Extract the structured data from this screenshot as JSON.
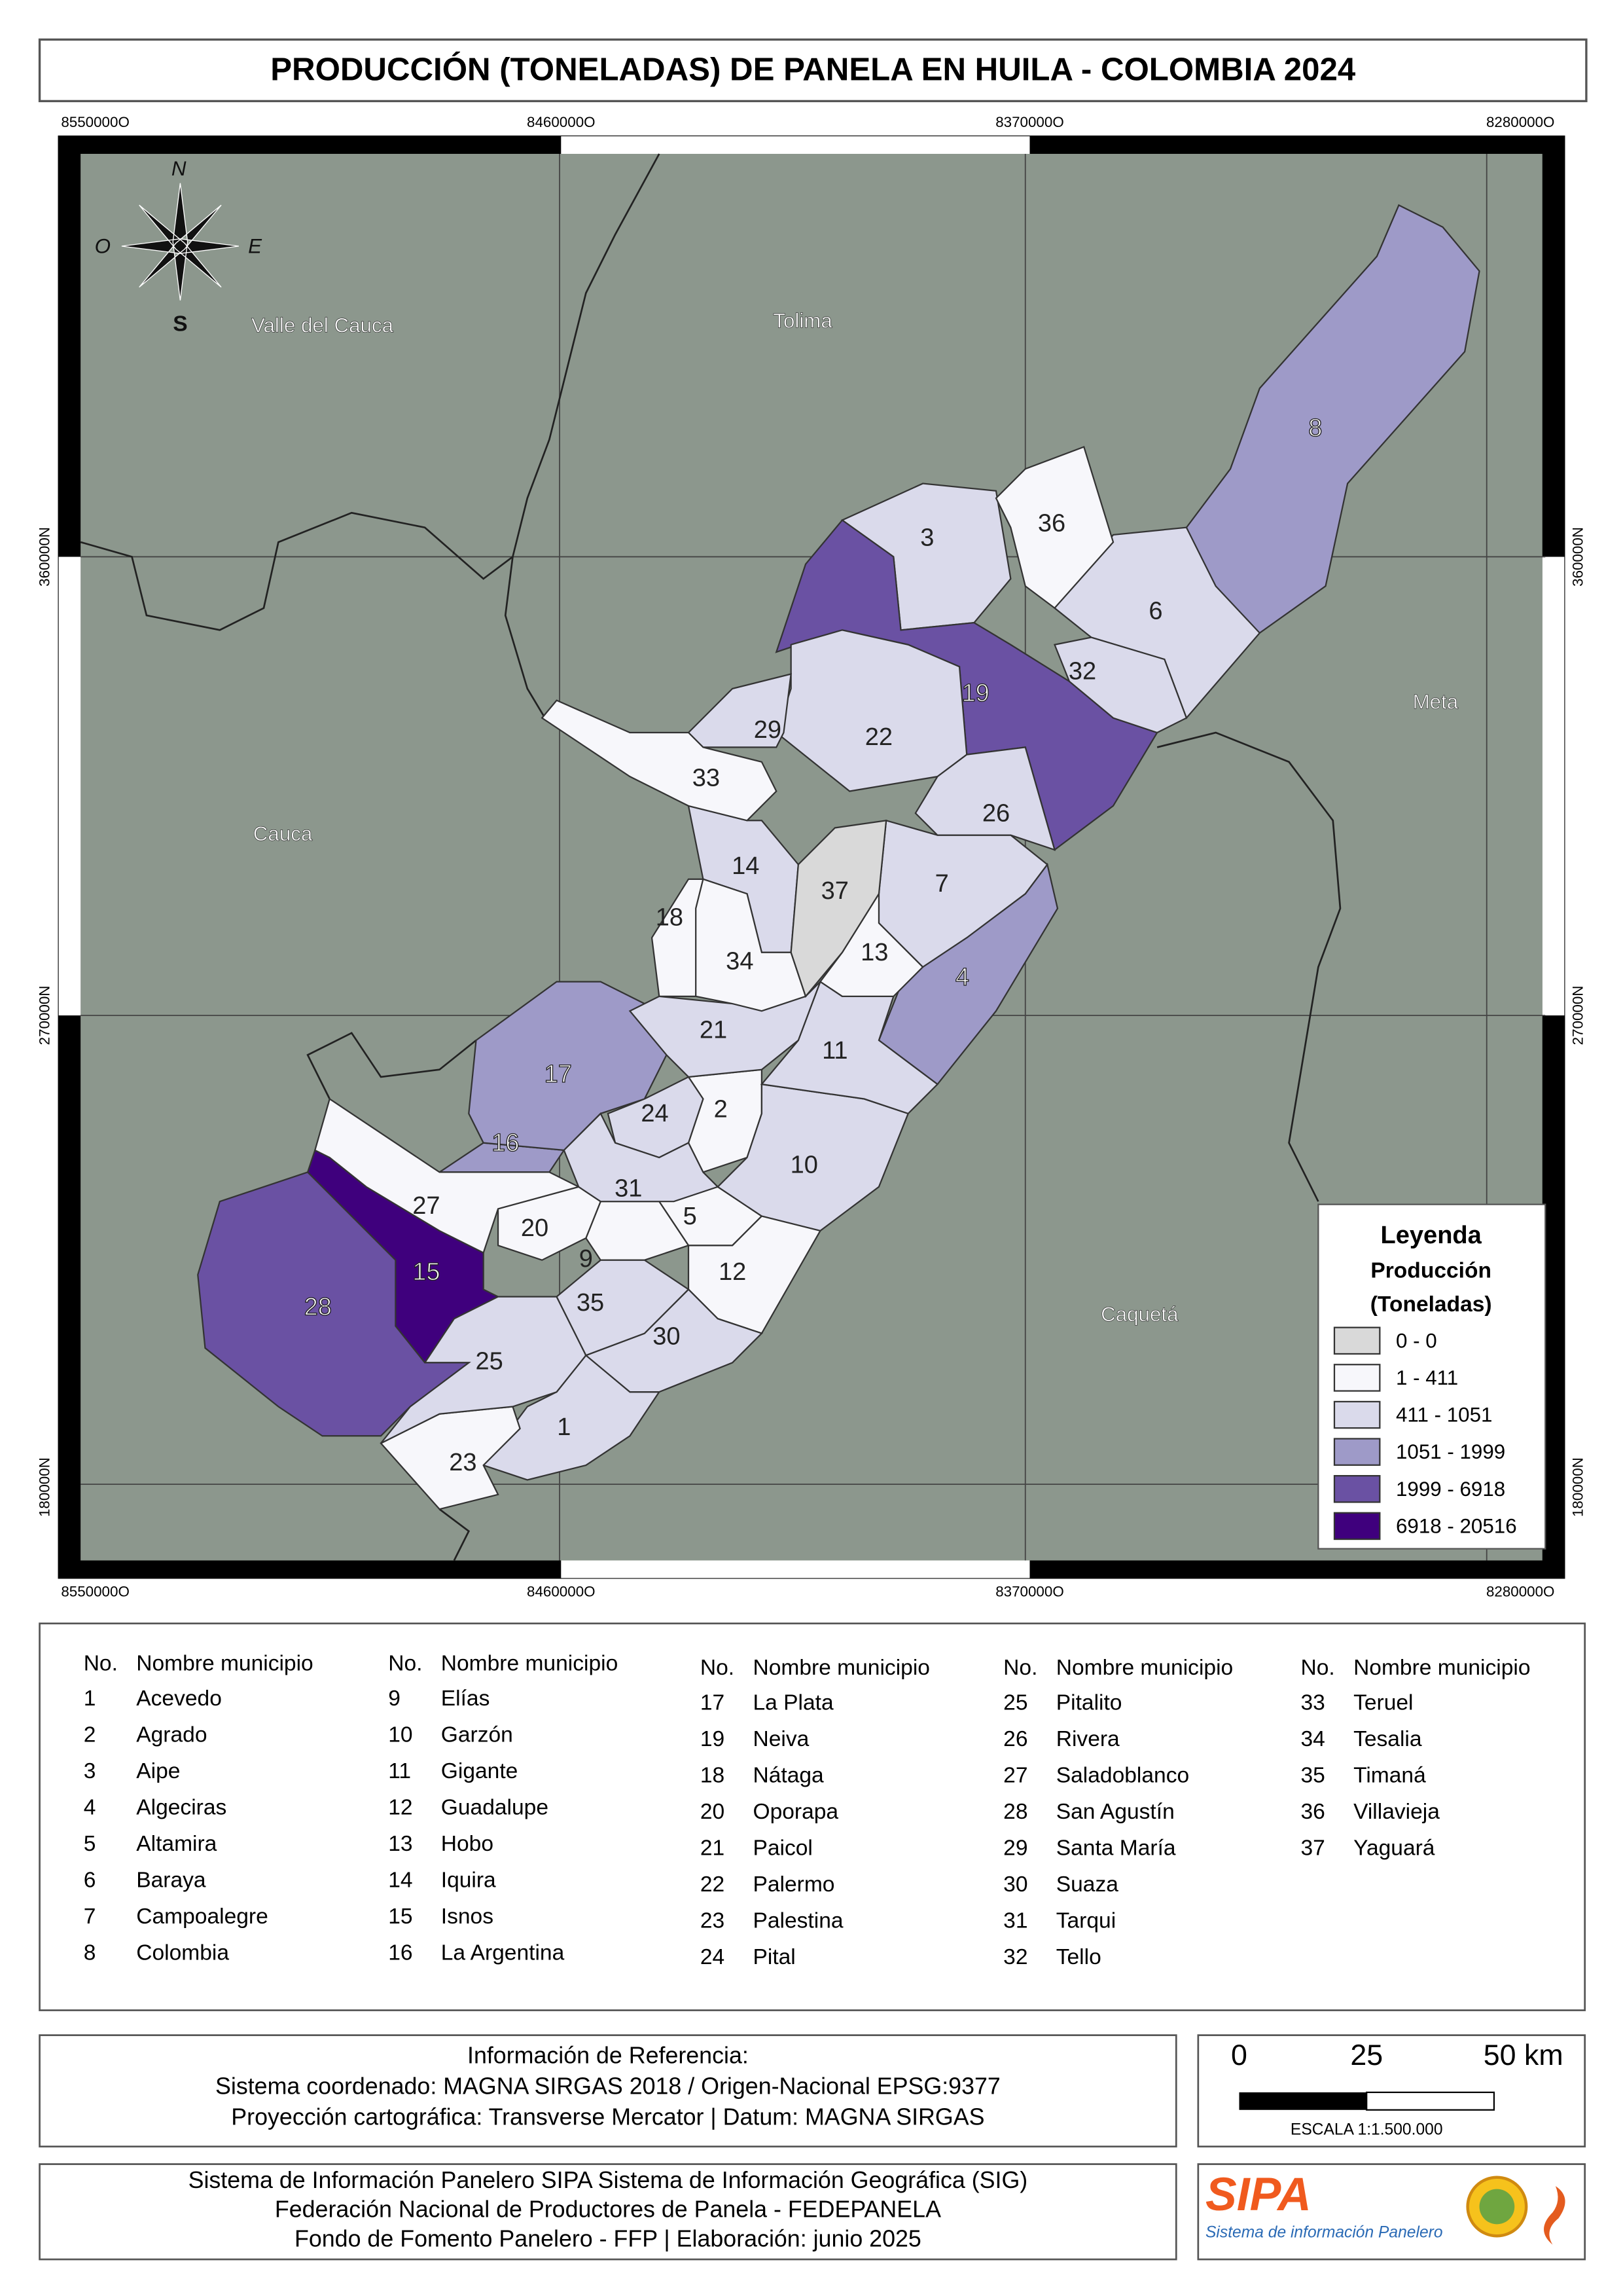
{
  "title": "PRODUCCIÓN (TONELADAS) DE PANELA EN HUILA - COLOMBIA 2024",
  "map": {
    "x_coords": [
      "8550000O",
      "8460000O",
      "8370000O",
      "8280000O"
    ],
    "y_coords": [
      "360000N",
      "270000N",
      "180000N"
    ],
    "compass": {
      "n": "N",
      "o": "O",
      "e": "E",
      "s": "S"
    },
    "departments": [
      "Valle del Cauca",
      "Tolima",
      "Meta",
      "Cauca",
      "Caquetá"
    ],
    "municipalities": [
      {
        "label": "1",
        "color": "#dadaeb"
      },
      {
        "label": "2",
        "color": "#f7f7fb"
      },
      {
        "label": "3",
        "color": "#dadaeb"
      },
      {
        "label": "4",
        "color": "#9e9ac8"
      },
      {
        "label": "5",
        "color": "#f7f7fb"
      },
      {
        "label": "6",
        "color": "#dadaeb"
      },
      {
        "label": "7",
        "color": "#dadaeb"
      },
      {
        "label": "8",
        "color": "#9e9ac8"
      },
      {
        "label": "9",
        "color": "#f7f7fb"
      },
      {
        "label": "10",
        "color": "#dadaeb"
      },
      {
        "label": "11",
        "color": "#dadaeb"
      },
      {
        "label": "12",
        "color": "#f7f7fb"
      },
      {
        "label": "13",
        "color": "#f7f7fb"
      },
      {
        "label": "14",
        "color": "#dadaeb"
      },
      {
        "label": "15",
        "color": "#3f007d"
      },
      {
        "label": "16",
        "color": "#9e9ac8"
      },
      {
        "label": "17",
        "color": "#9e9ac8"
      },
      {
        "label": "18",
        "color": "#f7f7fb"
      },
      {
        "label": "19",
        "color": "#6a51a3"
      },
      {
        "label": "20",
        "color": "#f7f7fb"
      },
      {
        "label": "21",
        "color": "#dadaeb"
      },
      {
        "label": "22",
        "color": "#dadaeb"
      },
      {
        "label": "23",
        "color": "#f7f7fb"
      },
      {
        "label": "24",
        "color": "#dadaeb"
      },
      {
        "label": "25",
        "color": "#dadaeb"
      },
      {
        "label": "26",
        "color": "#dadaeb"
      },
      {
        "label": "27",
        "color": "#f7f7fb"
      },
      {
        "label": "28",
        "color": "#6a51a3"
      },
      {
        "label": "29",
        "color": "#dadaeb"
      },
      {
        "label": "30",
        "color": "#dadaeb"
      },
      {
        "label": "31",
        "color": "#dadaeb"
      },
      {
        "label": "32",
        "color": "#dadaeb"
      },
      {
        "label": "33",
        "color": "#f7f7fb"
      },
      {
        "label": "34",
        "color": "#f7f7fb"
      },
      {
        "label": "35",
        "color": "#dadaeb"
      },
      {
        "label": "36",
        "color": "#f7f7fb"
      },
      {
        "label": "37",
        "color": "#d9d9d9"
      }
    ]
  },
  "legend": {
    "title": "Leyenda",
    "subtitle": "Producción",
    "unit": "(Toneladas)",
    "items": [
      {
        "label": "0 - 0",
        "color": "#d9d9d9"
      },
      {
        "label": "1 - 411",
        "color": "#f7f7fb"
      },
      {
        "label": "411 - 1051",
        "color": "#dadaeb"
      },
      {
        "label": "1051 - 1999",
        "color": "#9e9ac8"
      },
      {
        "label": "1999 - 6918",
        "color": "#6a51a3"
      },
      {
        "label": "6918 - 20516",
        "color": "#3f007d"
      }
    ]
  },
  "table": {
    "headers": [
      "No.",
      "Nombre municipio"
    ],
    "columns": [
      [
        [
          "1",
          "Acevedo"
        ],
        [
          "2",
          "Agrado"
        ],
        [
          "3",
          "Aipe"
        ],
        [
          "4",
          "Algeciras"
        ],
        [
          "5",
          "Altamira"
        ],
        [
          "6",
          "Baraya"
        ],
        [
          "7",
          "Campoalegre"
        ],
        [
          "8",
          "Colombia"
        ]
      ],
      [
        [
          "9",
          "Elías"
        ],
        [
          "10",
          "Garzón"
        ],
        [
          "11",
          "Gigante"
        ],
        [
          "12",
          "Guadalupe"
        ],
        [
          "13",
          "Hobo"
        ],
        [
          "14",
          "Iquira"
        ],
        [
          "15",
          "Isnos"
        ],
        [
          "16",
          "La Argentina"
        ]
      ],
      [
        [
          "17",
          "La Plata"
        ],
        [
          "19",
          "Neiva"
        ],
        [
          "18",
          "Nátaga"
        ],
        [
          "20",
          "Oporapa"
        ],
        [
          "21",
          "Paicol"
        ],
        [
          "22",
          "Palermo"
        ],
        [
          "23",
          "Palestina"
        ],
        [
          "24",
          "Pital"
        ]
      ],
      [
        [
          "25",
          "Pitalito"
        ],
        [
          "26",
          "Rivera"
        ],
        [
          "27",
          "Saladoblanco"
        ],
        [
          "28",
          "San Agustín"
        ],
        [
          "29",
          "Santa María"
        ],
        [
          "30",
          "Suaza"
        ],
        [
          "31",
          "Tarqui"
        ],
        [
          "32",
          "Tello"
        ]
      ],
      [
        [
          "33",
          "Teruel"
        ],
        [
          "34",
          "Tesalia"
        ],
        [
          "35",
          "Timaná"
        ],
        [
          "36",
          "Villavieja"
        ],
        [
          "37",
          "Yaguará"
        ]
      ]
    ]
  },
  "reference": [
    "Información de Referencia:",
    "Sistema coordenado: MAGNA SIRGAS 2018 / Origen-Nacional EPSG:9377",
    "Proyección cartográfica: Transverse Mercator | Datum: MAGNA SIRGAS"
  ],
  "scale": {
    "ticks": [
      "0",
      "25",
      "50 km"
    ],
    "label": "ESCALA 1:1.500.000"
  },
  "footer": [
    "Sistema de Información Panelero SIPA  Sistema de Información Geográfica (SIG)",
    "Federación Nacional de Productores de Panela - FEDEPANELA",
    "Fondo de Fomento Panelero - FFP |  Elaboración: junio 2025"
  ],
  "logo": {
    "name": "SIPA",
    "tagline": "Sistema de información Panelero"
  }
}
